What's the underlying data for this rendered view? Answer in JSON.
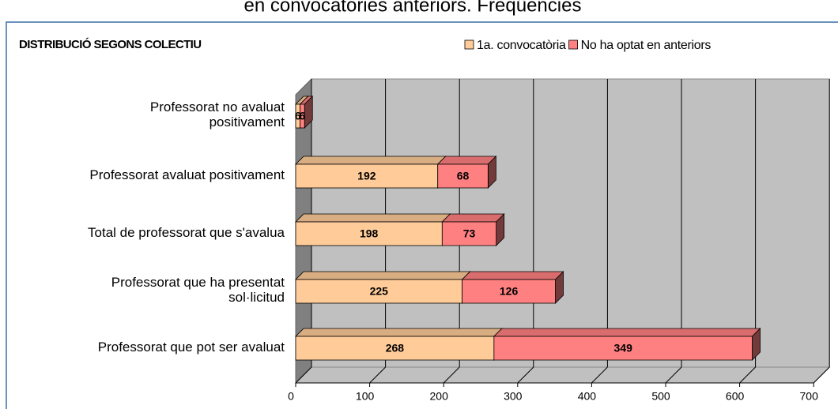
{
  "chart_data": {
    "type": "bar3d_stacked_horizontal",
    "title": "en convocatòries anteriors. Freqüències",
    "subtitle": "DISTRIBUCIÓ SEGONS COLECTIU",
    "categories": [
      "Professorat no avaluat\npositivament",
      "Professorat avaluat positivament",
      "Total de professorat que s'avalua",
      "Professorat que ha presentat\nsol·licitud",
      "Professorat que pot ser avaluat"
    ],
    "series": [
      {
        "name": "1a. convocatòria",
        "color": "#FFCC99",
        "values": [
          6,
          192,
          198,
          225,
          268
        ]
      },
      {
        "name": "No ha optat en anteriors",
        "color": "#FF8080",
        "values": [
          6,
          68,
          73,
          126,
          349
        ]
      }
    ],
    "xlim": [
      0,
      700
    ],
    "xticks": [
      0,
      100,
      200,
      300,
      400,
      500,
      600,
      700
    ],
    "grid": true,
    "legend": "top-right"
  }
}
